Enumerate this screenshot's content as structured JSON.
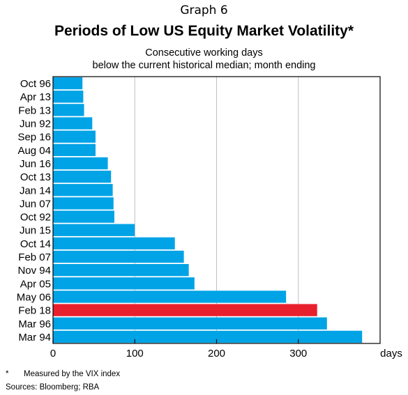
{
  "graph_number": "Graph 6",
  "title": "Periods of Low US Equity Market Volatility*",
  "subtitle_line1": "Consecutive working days",
  "subtitle_line2": "below the current historical median; month ending",
  "footnote": {
    "marker": "*",
    "text": "Measured by the VIX index"
  },
  "sources": "Sources:  Bloomberg; RBA",
  "colors": {
    "bar": "#00A3E6",
    "highlight": "#E8202D",
    "gridline": "#BFBFBF",
    "axis": "#000000"
  },
  "chart_data": {
    "type": "bar",
    "orientation": "horizontal",
    "title": "Periods of Low US Equity Market Volatility*",
    "subtitle": "Consecutive working days below the current historical median; month ending",
    "xlabel": "days",
    "ylabel": "",
    "xlim": [
      0,
      400
    ],
    "xticks": [
      0,
      100,
      200,
      300
    ],
    "grid": true,
    "categories": [
      "Oct 96",
      "Apr 13",
      "Feb 13",
      "Jun 92",
      "Sep 16",
      "Aug 04",
      "Jun 16",
      "Oct 13",
      "Jan 14",
      "Jun 07",
      "Oct 92",
      "Jun 15",
      "Oct 14",
      "Feb 07",
      "Nov 94",
      "Apr 05",
      "May 06",
      "Feb 18",
      "Mar 96",
      "Mar 94"
    ],
    "values": [
      36,
      37,
      38,
      48,
      52,
      52,
      67,
      71,
      73,
      74,
      75,
      100,
      149,
      160,
      166,
      173,
      285,
      323,
      335,
      378
    ],
    "highlight": "Feb 18"
  }
}
